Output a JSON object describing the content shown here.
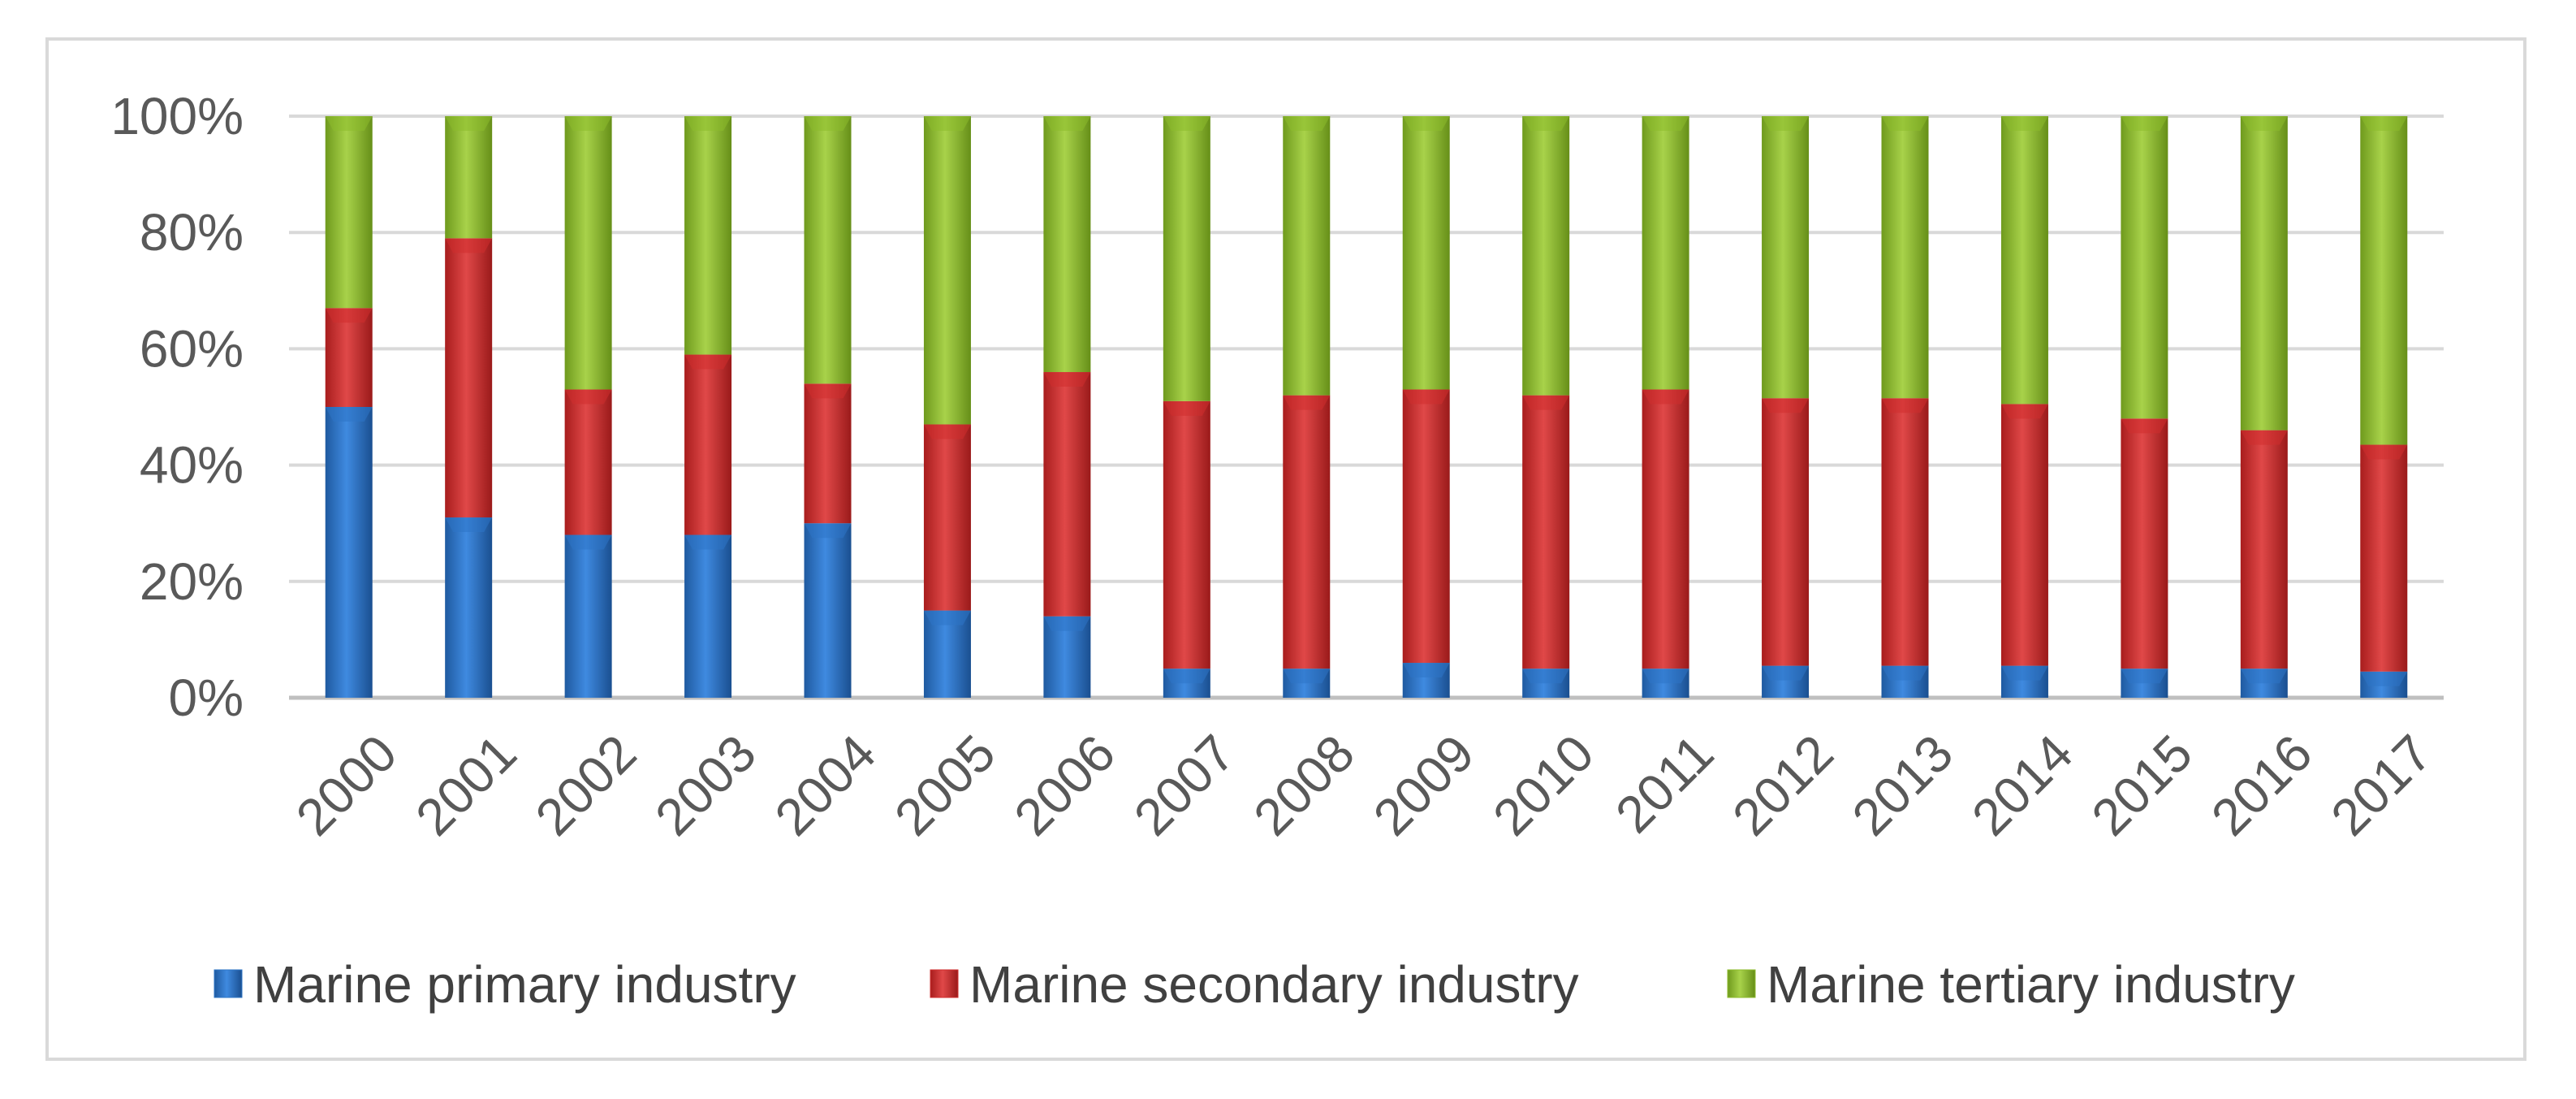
{
  "chart_data": {
    "type": "bar",
    "stacked": true,
    "percent": true,
    "categories": [
      "2000",
      "2001",
      "2002",
      "2003",
      "2004",
      "2005",
      "2006",
      "2007",
      "2008",
      "2009",
      "2010",
      "2011",
      "2012",
      "2013",
      "2014",
      "2015",
      "2016",
      "2017"
    ],
    "series": [
      {
        "name": "Marine primary industry",
        "color": "#2e75c6",
        "values": [
          50,
          31,
          28,
          28,
          30,
          15,
          14,
          5,
          5,
          6,
          5,
          5,
          5.5,
          5.5,
          5.5,
          5,
          5,
          4.5
        ]
      },
      {
        "name": "Marine secondary industry",
        "color": "#cf2d2d",
        "values": [
          17,
          48,
          25,
          31,
          24,
          32,
          42,
          46,
          47,
          47,
          47,
          48,
          46,
          46,
          45,
          43,
          41,
          39
        ]
      },
      {
        "name": "Marine tertiary industry",
        "color": "#8dbb2c",
        "values": [
          33,
          21,
          47,
          41,
          46,
          53,
          44,
          49,
          48,
          47,
          48,
          47,
          48.5,
          48.5,
          49.5,
          52,
          54,
          56.5
        ]
      }
    ],
    "ylim": [
      0,
      100
    ],
    "yticks": [
      "0%",
      "20%",
      "40%",
      "60%",
      "80%",
      "100%"
    ],
    "ytick_values": [
      0,
      20,
      40,
      60,
      80,
      100
    ],
    "gridlines": true,
    "legend_position": "bottom",
    "title": "",
    "xlabel": "",
    "ylabel": ""
  }
}
